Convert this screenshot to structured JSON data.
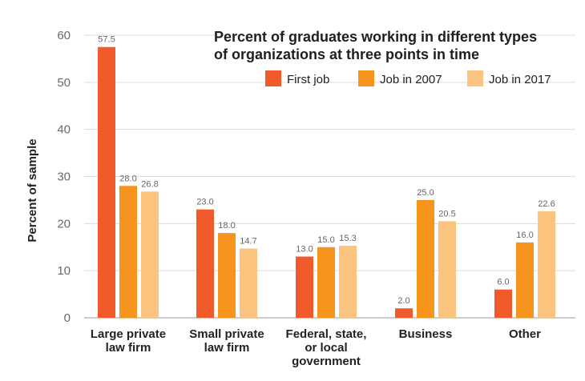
{
  "chart_data": {
    "type": "bar",
    "title_lines": [
      "Percent of graduates working in different types",
      "of organizations at three points in time"
    ],
    "ylabel": "Percent of sample",
    "xlabel": "",
    "ylim": [
      0,
      60
    ],
    "yticks": [
      0,
      10,
      20,
      30,
      40,
      50,
      60
    ],
    "grid": true,
    "legend_position": "top-right",
    "categories": [
      [
        "Large private",
        "law firm"
      ],
      [
        "Small private",
        "law firm"
      ],
      [
        "Federal, state,",
        "or local",
        "government"
      ],
      [
        "Business"
      ],
      [
        "Other"
      ]
    ],
    "series": [
      {
        "name": "First job",
        "color": "#f15a2b",
        "values": [
          57.5,
          23.0,
          13.0,
          2.0,
          6.0
        ],
        "labels": [
          "57.5",
          "23.0",
          "13.0",
          "2.0",
          "6.0"
        ]
      },
      {
        "name": "Job in 2007",
        "color": "#f7941d",
        "values": [
          28.0,
          18.0,
          15.0,
          25.0,
          16.0
        ],
        "labels": [
          "28.0",
          "18.0",
          "15.0",
          "25.0",
          "16.0"
        ]
      },
      {
        "name": "Job in 2017",
        "color": "#fbc47f",
        "values": [
          26.8,
          14.7,
          15.3,
          20.5,
          22.6
        ],
        "labels": [
          "26.8",
          "14.7",
          "15.3",
          "20.5",
          "22.6"
        ]
      }
    ]
  }
}
